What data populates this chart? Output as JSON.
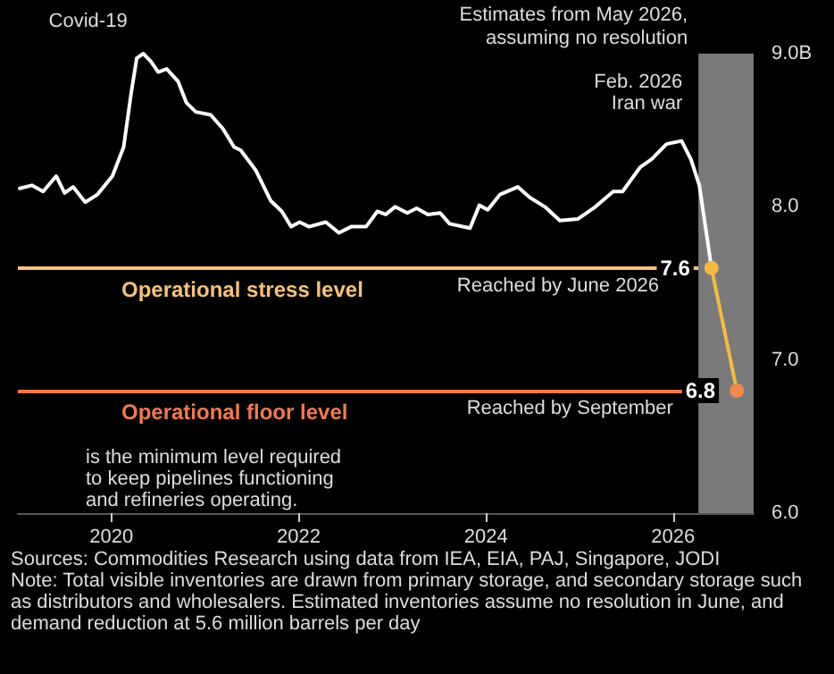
{
  "chart_data": {
    "type": "line",
    "xlim": [
      2019,
      2026.86
    ],
    "xticks": [
      2020,
      2022,
      2024,
      2026
    ],
    "ylim": [
      6.0,
      9.0
    ],
    "yticks": [
      {
        "value": 6,
        "label": "6.0"
      },
      {
        "value": 7,
        "label": "7.0"
      },
      {
        "value": 8,
        "label": "8.0"
      },
      {
        "value": 9,
        "label": "9.0B"
      }
    ],
    "grid": false,
    "series": [
      {
        "color": "#ffffff",
        "marker": "none",
        "x": [
          2019.02,
          2019.15,
          2019.27,
          2019.41,
          2019.5,
          2019.59,
          2019.72,
          2019.85,
          2020.01,
          2020.13,
          2020.21,
          2020.27,
          2020.34,
          2020.42,
          2020.5,
          2020.59,
          2020.71,
          2020.8,
          2020.9,
          2021.06,
          2021.19,
          2021.31,
          2021.38,
          2021.54,
          2021.7,
          2021.82,
          2021.92,
          2022.01,
          2022.11,
          2022.29,
          2022.43,
          2022.56,
          2022.72,
          2022.84,
          2022.93,
          2023.03,
          2023.16,
          2023.26,
          2023.38,
          2023.51,
          2023.61,
          2023.83,
          2023.93,
          2024.02,
          2024.15,
          2024.34,
          2024.47,
          2024.63,
          2024.79,
          2024.98,
          2025.17,
          2025.36,
          2025.46,
          2025.65,
          2025.77,
          2025.93,
          2026.09,
          2026.19,
          2026.28,
          2026.41
        ],
        "values": [
          8.12,
          8.14,
          8.1,
          8.2,
          8.09,
          8.13,
          8.03,
          8.08,
          8.2,
          8.39,
          8.74,
          8.97,
          9.0,
          8.95,
          8.88,
          8.9,
          8.82,
          8.68,
          8.62,
          8.6,
          8.51,
          8.39,
          8.37,
          8.24,
          8.04,
          7.97,
          7.87,
          7.9,
          7.87,
          7.9,
          7.83,
          7.87,
          7.87,
          7.97,
          7.95,
          8.0,
          7.96,
          7.99,
          7.95,
          7.96,
          7.89,
          7.86,
          8.01,
          7.98,
          8.08,
          8.13,
          8.06,
          8.0,
          7.91,
          7.92,
          8.0,
          8.1,
          8.1,
          8.26,
          8.31,
          8.41,
          8.43,
          8.31,
          8.14,
          7.6
        ]
      },
      {
        "color": "#f5b942",
        "colors": [
          "#f5b942",
          "#f08a4b"
        ],
        "marker": "circle",
        "data_labels": true,
        "x": [
          2026.41,
          2026.68
        ],
        "values": [
          7.6,
          6.8
        ]
      }
    ],
    "ref_lines": [
      {
        "axis": "y",
        "value": 7.6,
        "label": "Operational stress level",
        "color": "#f5c27a"
      },
      {
        "axis": "y",
        "value": 6.8,
        "label": "Operational floor level",
        "color": "#f07a50"
      }
    ],
    "bands": [
      {
        "axis": "x",
        "from": 2026.27,
        "to": 2026.86,
        "label": "Estimates from May 2026,\nassuming no resolution",
        "color": "#7a7a7a"
      }
    ],
    "annotations": [
      "Covid-19",
      "Feb. 2026\nIran war",
      {
        "text": "Reached by June 2026",
        "x": 2025.85,
        "y": 7.6
      },
      {
        "text": "Reached by September",
        "x": 2026.0,
        "y": 6.8
      },
      "is the minimum level required to keep pipelines functioning and refineries operating.",
      "Sources: Commodities Research using data from IEA, EIA, PAJ, Singapore, JODI",
      "Note: Total visible inventories are drawn from primary storage, and secondary storage such as distributors and wholesalers. Estimated inventories assume no resolution in June, and demand reduction at 5.6 million barrels per day"
    ]
  }
}
